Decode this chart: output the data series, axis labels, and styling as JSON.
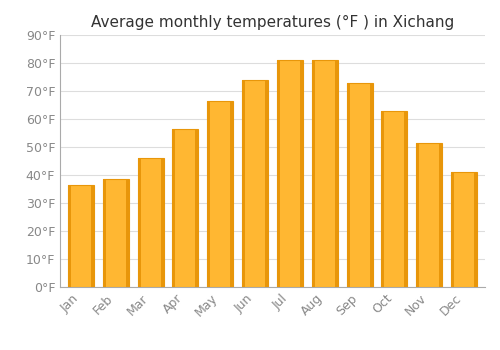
{
  "title": "Average monthly temperatures (°F ) in Xichang",
  "months": [
    "Jan",
    "Feb",
    "Mar",
    "Apr",
    "May",
    "Jun",
    "Jul",
    "Aug",
    "Sep",
    "Oct",
    "Nov",
    "Dec"
  ],
  "values": [
    36.5,
    38.5,
    46,
    56.5,
    66.5,
    74,
    81,
    81,
    73,
    63,
    51.5,
    41
  ],
  "bar_color_light": "#FFB732",
  "bar_color_dark": "#E8960A",
  "ylim": [
    0,
    90
  ],
  "yticks": [
    0,
    10,
    20,
    30,
    40,
    50,
    60,
    70,
    80,
    90
  ],
  "ylabel_suffix": "°F",
  "background_color": "#ffffff",
  "grid_color": "#dddddd",
  "title_fontsize": 11,
  "tick_fontsize": 9,
  "tick_color": "#888888"
}
